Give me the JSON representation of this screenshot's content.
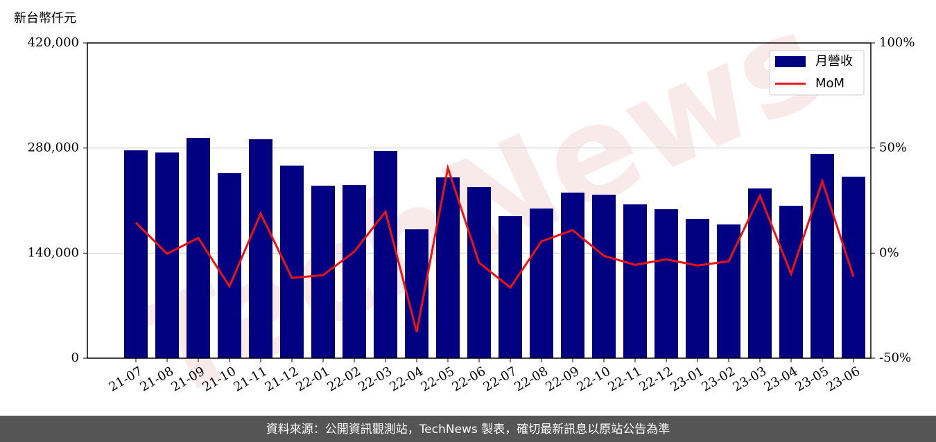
{
  "chart_data": {
    "type": "bar_line",
    "y_label": "新台幣仟元",
    "watermark": "TechNews",
    "footer": "資料來源：公開資訊觀測站，TechNews 製表，確切最新訊息以原站公告為準",
    "categories": [
      "21-07",
      "21-08",
      "21-09",
      "21-10",
      "21-11",
      "21-12",
      "22-01",
      "22-02",
      "22-03",
      "22-04",
      "22-05",
      "22-06",
      "22-07",
      "22-08",
      "22-09",
      "22-10",
      "22-11",
      "22-12",
      "23-01",
      "23-02",
      "23-03",
      "23-04",
      "23-05",
      "23-06"
    ],
    "series": [
      {
        "name": "月營收",
        "type": "bar",
        "color": "#000080",
        "values": [
          277000,
          274000,
          293500,
          246500,
          291700,
          256600,
          229800,
          230800,
          276000,
          171700,
          240900,
          228000,
          189200,
          199400,
          220600,
          217800,
          204900,
          198500,
          185500,
          178200,
          226100,
          203100,
          272300,
          241800
        ]
      },
      {
        "name": "MoM",
        "type": "line",
        "axis": "y2",
        "color": "#ee1111",
        "values": [
          14.5,
          -0.3,
          7.2,
          -15.8,
          18.8,
          -11.8,
          -10.5,
          0.7,
          19.7,
          -37.5,
          40.5,
          -4.6,
          -16.4,
          5.6,
          10.9,
          -1.3,
          -5.6,
          -3,
          -5.9,
          -3.9,
          27.3,
          -9.9,
          34.2,
          -11.2
        ]
      }
    ],
    "ylim": [
      0,
      420000
    ],
    "yticks": [
      0,
      {
        "value": 140000,
        "label": "140,000"
      },
      {
        "value": 280000,
        "label": "280,000"
      },
      {
        "value": 420000,
        "label": "420,000"
      }
    ],
    "y2lim": [
      -50,
      100
    ],
    "y2ticks": [
      {
        "value": -50,
        "label": "-50%"
      },
      {
        "value": 0,
        "label": "0%"
      },
      {
        "value": 50,
        "label": "50%"
      },
      {
        "value": 100,
        "label": "100%"
      }
    ],
    "grid": true,
    "legend": "upper right"
  }
}
